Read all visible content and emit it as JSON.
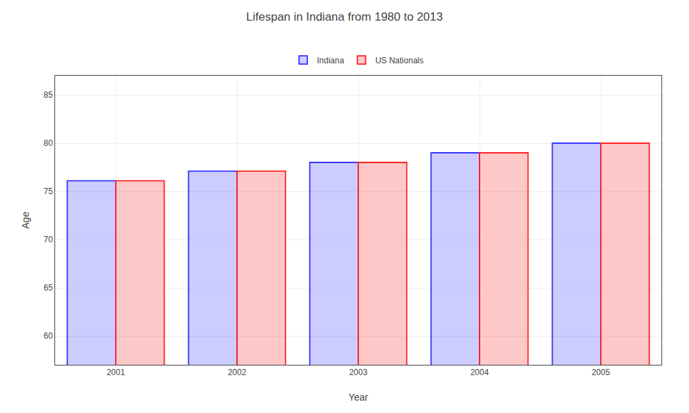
{
  "chart_data": {
    "type": "bar",
    "title": "Lifespan in Indiana from 1980 to 2013",
    "xlabel": "Year",
    "ylabel": "Age",
    "categories": [
      "2001",
      "2002",
      "2003",
      "2004",
      "2005"
    ],
    "series": [
      {
        "name": "Indiana",
        "color": "#3333ff",
        "values": [
          76.1,
          77.1,
          78.0,
          79.0,
          80.0
        ]
      },
      {
        "name": "US Nationals",
        "color": "#ff2222",
        "values": [
          76.1,
          77.1,
          78.0,
          79.0,
          80.0
        ]
      }
    ],
    "ylim": [
      57,
      87
    ],
    "yticks": [
      60,
      65,
      70,
      75,
      80,
      85
    ],
    "grid": true,
    "legend": "top"
  }
}
